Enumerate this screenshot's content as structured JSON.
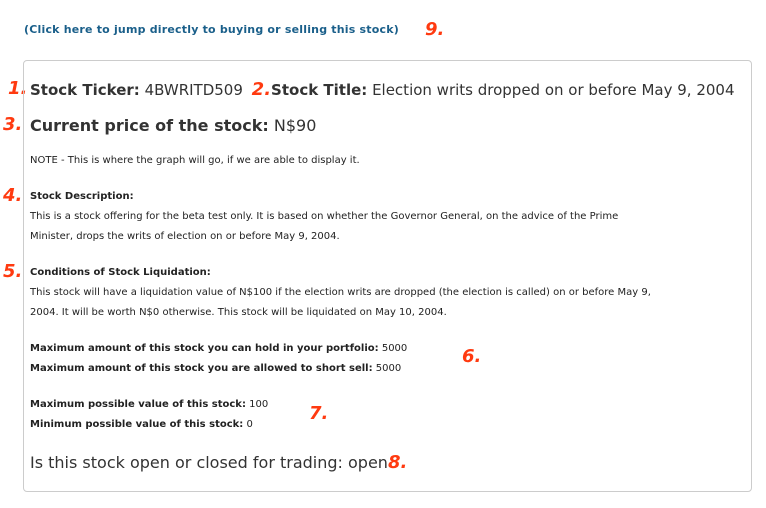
{
  "jump_link": "(Click here to jump directly to buying or selling this stock)",
  "annotations": [
    "1.",
    "2.",
    "3.",
    "4.",
    "5.",
    "6.",
    "7.",
    "8.",
    "9."
  ],
  "ticker": {
    "label": "Stock Ticker:",
    "value": "4BWRITD509"
  },
  "title": {
    "label": "Stock Title:",
    "value": "Election writs dropped on or before May 9, 2004"
  },
  "price": {
    "label": "Current price of the stock:",
    "value": "N$90"
  },
  "graph_note": "NOTE - This is where the graph will go, if we are able to display it.",
  "description": {
    "label": "Stock Description:",
    "lines": [
      "This is a stock offering for the beta test only. It is based on whether the Governor General, on the advice of the Prime",
      "Minister, drops the writs of election on or before May 9, 2004."
    ]
  },
  "liquidation": {
    "label": "Conditions of Stock Liquidation:",
    "lines": [
      "This stock will have a liquidation value of N$100 if the election writs are dropped (the election is called) on or before May 9,",
      "2004. It will be worth N$0 otherwise. This stock will be liquidated on May 10, 2004."
    ]
  },
  "max_hold": {
    "label": "Maximum amount of this stock you can hold in your portfolio:",
    "value": "5000"
  },
  "max_short": {
    "label": "Maximum amount of this stock you are allowed to short sell:",
    "value": "5000"
  },
  "max_value": {
    "label": "Maximum possible value of this stock:",
    "value": "100"
  },
  "min_value": {
    "label": "Minimum possible value of this stock:",
    "value": "0"
  },
  "trading": {
    "label": "Is this stock open or closed for trading:",
    "value": "open"
  },
  "colors": {
    "link": "#1a5f8a",
    "annotation": "#ff3a10",
    "border": "#cccccc"
  }
}
